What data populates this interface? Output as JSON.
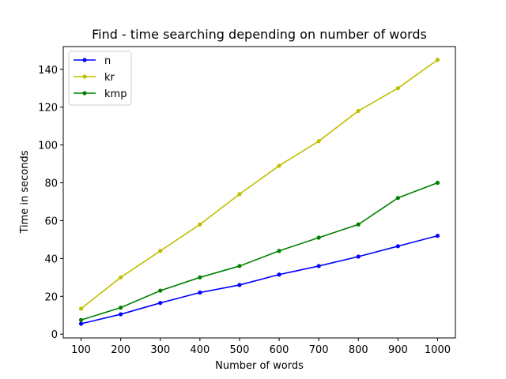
{
  "chart_data": {
    "type": "line",
    "title": "Find - time searching depending on number of words",
    "xlabel": "Number of words",
    "ylabel": "Time in seconds",
    "x": [
      100,
      200,
      300,
      400,
      500,
      600,
      700,
      800,
      900,
      1000
    ],
    "xlim": [
      55,
      1045
    ],
    "ylim": [
      -2,
      152
    ],
    "xticks": [
      100,
      200,
      300,
      400,
      500,
      600,
      700,
      800,
      900,
      1000
    ],
    "yticks": [
      0,
      20,
      40,
      60,
      80,
      100,
      120,
      140
    ],
    "grid": false,
    "legend_position": "top-left",
    "series": [
      {
        "name": "n",
        "color": "#0000ff",
        "values": [
          5.5,
          10.5,
          16.5,
          22,
          26,
          31.5,
          36,
          41,
          46.5,
          52
        ]
      },
      {
        "name": "kr",
        "color": "#bfbf00",
        "values": [
          13.5,
          30,
          44,
          58,
          74,
          89,
          102,
          118,
          130,
          145
        ]
      },
      {
        "name": "kmp",
        "color": "#008000",
        "values": [
          7.5,
          14,
          23,
          30,
          36,
          44,
          51,
          58,
          72,
          80
        ]
      }
    ]
  }
}
